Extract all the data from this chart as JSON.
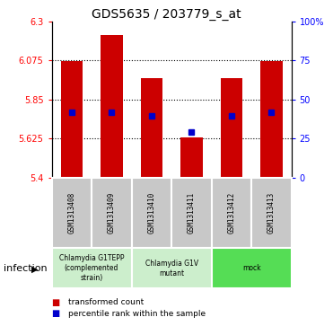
{
  "title": "GDS5635 / 203779_s_at",
  "samples": [
    "GSM1313408",
    "GSM1313409",
    "GSM1313410",
    "GSM1313411",
    "GSM1313412",
    "GSM1313413"
  ],
  "bar_tops": [
    6.07,
    6.22,
    5.97,
    5.63,
    5.97,
    6.07
  ],
  "bar_bottoms": [
    5.4,
    5.4,
    5.4,
    5.4,
    5.4,
    5.4
  ],
  "percentile_values": [
    5.775,
    5.775,
    5.755,
    5.665,
    5.755,
    5.775
  ],
  "ylim": [
    5.4,
    6.3
  ],
  "y_ticks": [
    5.4,
    5.625,
    5.85,
    6.075,
    6.3
  ],
  "y_tick_labels": [
    "5.4",
    "5.625",
    "5.85",
    "6.075",
    "6.3"
  ],
  "right_ylim": [
    0,
    100
  ],
  "right_ticks": [
    0,
    25,
    50,
    75,
    100
  ],
  "right_tick_labels": [
    "0",
    "25",
    "50",
    "75",
    "100%"
  ],
  "gridline_y": [
    5.625,
    5.85,
    6.075
  ],
  "bar_color": "#cc0000",
  "dot_color": "#0000cc",
  "bar_width": 0.55,
  "group_info": [
    {
      "label": "Chlamydia G1TEPP\n(complemented\nstrain)",
      "color": "#cceecc",
      "start": 0,
      "end": 2
    },
    {
      "label": "Chlamydia G1V\nmutant",
      "color": "#cceecc",
      "start": 2,
      "end": 4
    },
    {
      "label": "mock",
      "color": "#55dd55",
      "start": 4,
      "end": 6
    }
  ],
  "factor_label": "infection",
  "legend_items": [
    "transformed count",
    "percentile rank within the sample"
  ],
  "legend_colors": [
    "#cc0000",
    "#0000cc"
  ],
  "bg_color": "#ffffff",
  "label_box_color": "#c8c8c8"
}
